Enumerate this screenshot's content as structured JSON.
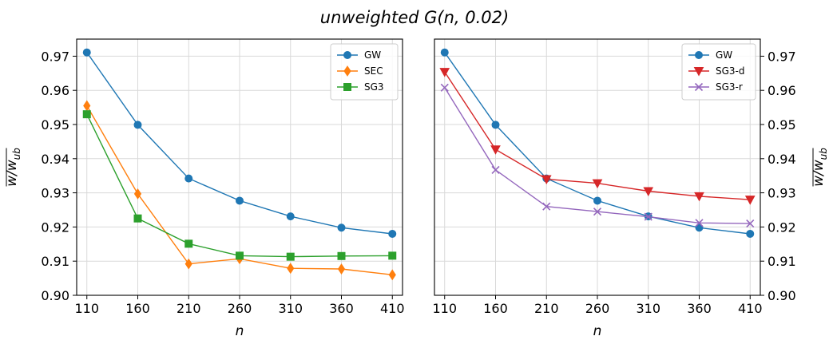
{
  "figure_title": "unweighted G(n, 0.02)",
  "chart_data": [
    {
      "type": "line",
      "panel": "left",
      "title": "",
      "xlabel": "n",
      "ylabel": "w/w_ub (overlined)",
      "ylabel_main": "w/w",
      "ylabel_sub": "ub",
      "x": [
        110,
        160,
        210,
        260,
        310,
        360,
        410
      ],
      "xticks": [
        "110",
        "160",
        "210",
        "260",
        "310",
        "360",
        "410"
      ],
      "ylim": [
        0.9,
        0.975
      ],
      "yticks": [
        "0.90",
        "0.91",
        "0.92",
        "0.93",
        "0.94",
        "0.95",
        "0.96",
        "0.97"
      ],
      "yaxis_side": "left",
      "grid": true,
      "legend_position": "top-right",
      "series": [
        {
          "name": "GW",
          "color": "#1f77b4",
          "marker": "circle",
          "values": [
            0.9711,
            0.9499,
            0.9342,
            0.9277,
            0.9231,
            0.9198,
            0.918
          ]
        },
        {
          "name": "SEC",
          "color": "#ff7f0e",
          "marker": "diamond",
          "values": [
            0.9555,
            0.9297,
            0.9092,
            0.9107,
            0.9079,
            0.9077,
            0.906
          ]
        },
        {
          "name": "SG3",
          "color": "#2ca02c",
          "marker": "square",
          "values": [
            0.953,
            0.9225,
            0.9151,
            0.9116,
            0.9113,
            0.9115,
            0.9116
          ]
        }
      ]
    },
    {
      "type": "line",
      "panel": "right",
      "title": "",
      "xlabel": "n",
      "ylabel": "w/w_ub (overlined)",
      "ylabel_main": "w/w",
      "ylabel_sub": "ub",
      "x": [
        110,
        160,
        210,
        260,
        310,
        360,
        410
      ],
      "xticks": [
        "110",
        "160",
        "210",
        "260",
        "310",
        "360",
        "410"
      ],
      "ylim": [
        0.9,
        0.975
      ],
      "yticks": [
        "0.90",
        "0.91",
        "0.92",
        "0.93",
        "0.94",
        "0.95",
        "0.96",
        "0.97"
      ],
      "yaxis_side": "right",
      "grid": true,
      "legend_position": "top-right",
      "series": [
        {
          "name": "GW",
          "color": "#1f77b4",
          "marker": "circle",
          "values": [
            0.9711,
            0.9499,
            0.9342,
            0.9277,
            0.9231,
            0.9198,
            0.918
          ]
        },
        {
          "name": "SG3-d",
          "color": "#d62728",
          "marker": "triangle-down",
          "values": [
            0.9654,
            0.9427,
            0.934,
            0.9328,
            0.9305,
            0.929,
            0.928
          ]
        },
        {
          "name": "SG3-r",
          "color": "#9467bd",
          "marker": "x",
          "values": [
            0.9608,
            0.9367,
            0.926,
            0.9245,
            0.923,
            0.9212,
            0.921
          ]
        }
      ]
    }
  ]
}
